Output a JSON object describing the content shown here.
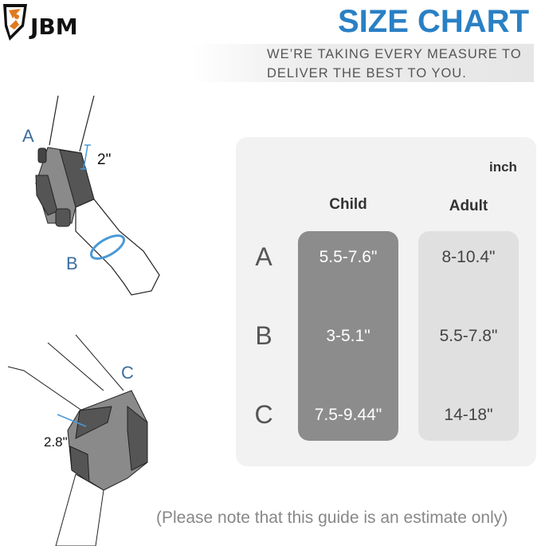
{
  "brand": {
    "logo_text": "JBM"
  },
  "header": {
    "title": "SIZE CHART",
    "tagline_line1": "WE’RE TAKING EVERY MEASURE TO",
    "tagline_line2": "DELIVER THE BEST TO YOU."
  },
  "illustration": {
    "elbow": {
      "label_a": "A",
      "label_b": "B",
      "width_measure": "2\""
    },
    "knee": {
      "label_c": "C",
      "width_measure": "2.8\""
    }
  },
  "table": {
    "unit": "inch",
    "columns": [
      "Child",
      "Adult"
    ],
    "rows": [
      {
        "label": "A",
        "child": "5.5-7.6\"",
        "adult": "8-10.4\""
      },
      {
        "label": "B",
        "child": "3-5.1\"",
        "adult": "5.5-7.8\""
      },
      {
        "label": "C",
        "child": "7.5-9.44\"",
        "adult": "14-18\""
      }
    ]
  },
  "footer": {
    "note": "(Please note that this guide is an estimate only)"
  },
  "colors": {
    "title_blue": "#2a80c4",
    "child_column": "#8c8c8c",
    "adult_column": "#e0e0e0",
    "label_blue": "#3c6e9e",
    "logo_orange": "#e07a1f"
  }
}
